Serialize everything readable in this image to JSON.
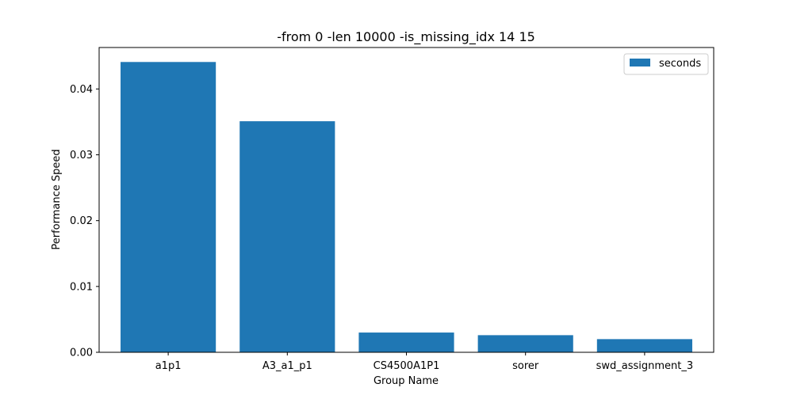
{
  "chart_data": {
    "type": "bar",
    "title": "-from 0 -len 10000 -is_missing_idx 14 15",
    "xlabel": "Group Name",
    "ylabel": "Performance Speed",
    "categories": [
      "a1p1",
      "A3_a1_p1",
      "CS4500A1P1",
      "sorer",
      "swd_assignment_3"
    ],
    "series": [
      {
        "name": "seconds",
        "color": "#1f77b4",
        "values": [
          0.0441,
          0.0351,
          0.003,
          0.0026,
          0.002
        ]
      }
    ],
    "ylim": [
      0,
      0.0463
    ],
    "yticks": [
      0.0,
      0.01,
      0.02,
      0.03,
      0.04
    ],
    "ytick_labels": [
      "0.00",
      "0.01",
      "0.02",
      "0.03",
      "0.04"
    ],
    "grid": false,
    "legend_position": "top-right"
  }
}
